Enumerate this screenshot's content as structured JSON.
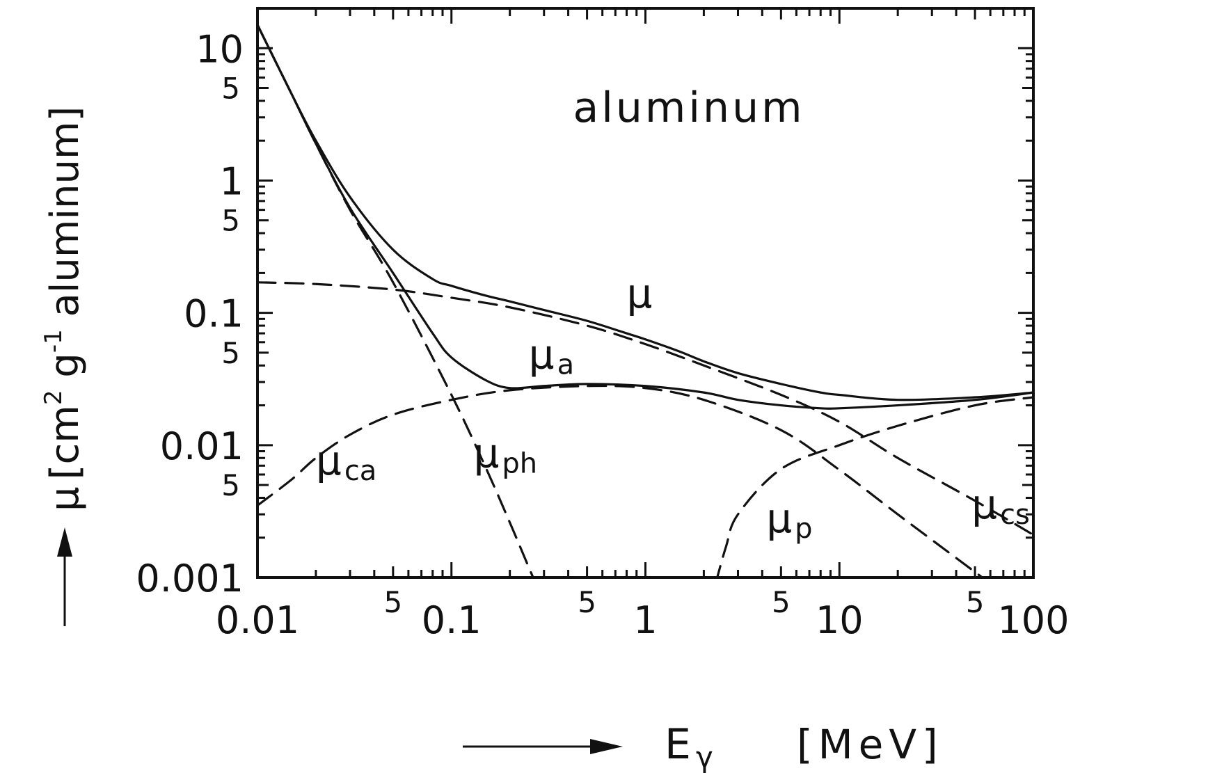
{
  "chart_data": {
    "type": "line",
    "title": "aluminum",
    "xlabel": {
      "main": "E",
      "sub": "γ",
      "unit": "[MeV]"
    },
    "ylabel": {
      "sym": "μ",
      "bracket_open": "[cm",
      "sup1": "2",
      "mid": " g",
      "sup2": "-1",
      "rest": " aluminum]"
    },
    "x_scale": "log",
    "y_scale": "log",
    "xlim": [
      0.01,
      100
    ],
    "ylim": [
      0.001,
      20
    ],
    "x_ticks": [
      {
        "value": 0.01,
        "label": "0.01"
      },
      {
        "value": 0.1,
        "label": "0.1"
      },
      {
        "value": 1,
        "label": "1"
      },
      {
        "value": 10,
        "label": "10"
      },
      {
        "value": 100,
        "label": "100"
      }
    ],
    "x_minor_labels": [
      {
        "value": 0.05,
        "label": "5"
      },
      {
        "value": 0.5,
        "label": "5"
      },
      {
        "value": 5,
        "label": "5"
      },
      {
        "value": 50,
        "label": "5"
      }
    ],
    "y_ticks": [
      {
        "value": 0.001,
        "label": "0.001"
      },
      {
        "value": 0.01,
        "label": "0.01"
      },
      {
        "value": 0.1,
        "label": "0.1"
      },
      {
        "value": 1,
        "label": "1"
      },
      {
        "value": 10,
        "label": "10"
      }
    ],
    "y_minor_labels": [
      {
        "value": 0.005,
        "label": "5"
      },
      {
        "value": 0.05,
        "label": "5"
      },
      {
        "value": 0.5,
        "label": "5"
      },
      {
        "value": 5,
        "label": "5"
      }
    ],
    "series": [
      {
        "name": "μ",
        "style": "solid",
        "label_at": [
          0.8,
          0.11
        ],
        "points": [
          [
            0.01,
            15
          ],
          [
            0.015,
            4.5
          ],
          [
            0.02,
            2.0
          ],
          [
            0.03,
            0.75
          ],
          [
            0.05,
            0.3
          ],
          [
            0.08,
            0.18
          ],
          [
            0.1,
            0.16
          ],
          [
            0.15,
            0.135
          ],
          [
            0.2,
            0.122
          ],
          [
            0.3,
            0.105
          ],
          [
            0.5,
            0.087
          ],
          [
            0.8,
            0.07
          ],
          [
            1,
            0.063
          ],
          [
            1.5,
            0.051
          ],
          [
            2,
            0.043
          ],
          [
            3,
            0.035
          ],
          [
            5,
            0.029
          ],
          [
            8,
            0.025
          ],
          [
            10,
            0.024
          ],
          [
            20,
            0.022
          ],
          [
            50,
            0.023
          ],
          [
            100,
            0.025
          ]
        ]
      },
      {
        "name": "μa",
        "style": "solid",
        "label_at": [
          0.25,
          0.038
        ],
        "points": [
          [
            0.01,
            15
          ],
          [
            0.015,
            4.5
          ],
          [
            0.02,
            1.9
          ],
          [
            0.03,
            0.62
          ],
          [
            0.05,
            0.2
          ],
          [
            0.08,
            0.07
          ],
          [
            0.1,
            0.046
          ],
          [
            0.15,
            0.031
          ],
          [
            0.2,
            0.027
          ],
          [
            0.3,
            0.028
          ],
          [
            0.5,
            0.029
          ],
          [
            1,
            0.028
          ],
          [
            2,
            0.025
          ],
          [
            3,
            0.022
          ],
          [
            5,
            0.02
          ],
          [
            8,
            0.019
          ],
          [
            10,
            0.019
          ],
          [
            20,
            0.02
          ],
          [
            50,
            0.022
          ],
          [
            100,
            0.025
          ]
        ]
      },
      {
        "name": "μcs",
        "style": "dashed",
        "label_at": [
          48,
          0.0028
        ],
        "points": [
          [
            0.01,
            0.17
          ],
          [
            0.02,
            0.165
          ],
          [
            0.05,
            0.15
          ],
          [
            0.1,
            0.13
          ],
          [
            0.2,
            0.11
          ],
          [
            0.5,
            0.08
          ],
          [
            1,
            0.058
          ],
          [
            2,
            0.04
          ],
          [
            5,
            0.024
          ],
          [
            10,
            0.015
          ],
          [
            20,
            0.008
          ],
          [
            50,
            0.0038
          ],
          [
            100,
            0.0021
          ]
        ]
      },
      {
        "name": "μca",
        "style": "dashed",
        "label_at": [
          0.02,
          0.006
        ],
        "points": [
          [
            0.01,
            0.0035
          ],
          [
            0.015,
            0.0055
          ],
          [
            0.02,
            0.008
          ],
          [
            0.03,
            0.012
          ],
          [
            0.05,
            0.017
          ],
          [
            0.1,
            0.022
          ],
          [
            0.2,
            0.026
          ],
          [
            0.5,
            0.028
          ],
          [
            1,
            0.027
          ],
          [
            2,
            0.022
          ],
          [
            5,
            0.013
          ],
          [
            10,
            0.0065
          ],
          [
            20,
            0.003
          ],
          [
            50,
            0.0011
          ],
          [
            60,
            0.0009
          ]
        ]
      },
      {
        "name": "μph",
        "style": "dashed",
        "label_at": [
          0.13,
          0.0068
        ],
        "points": [
          [
            0.01,
            15
          ],
          [
            0.015,
            4.5
          ],
          [
            0.02,
            1.9
          ],
          [
            0.03,
            0.6
          ],
          [
            0.05,
            0.17
          ],
          [
            0.1,
            0.024
          ],
          [
            0.15,
            0.0068
          ],
          [
            0.2,
            0.0026
          ],
          [
            0.25,
            0.0012
          ],
          [
            0.27,
            0.00092
          ]
        ]
      },
      {
        "name": "μp",
        "style": "dashed",
        "label_at": [
          4.2,
          0.0022
        ],
        "points": [
          [
            2.3,
            0.0009
          ],
          [
            2.6,
            0.0017
          ],
          [
            3,
            0.003
          ],
          [
            5,
            0.0066
          ],
          [
            10,
            0.01
          ],
          [
            20,
            0.014
          ],
          [
            50,
            0.02
          ],
          [
            100,
            0.023
          ]
        ]
      }
    ]
  }
}
